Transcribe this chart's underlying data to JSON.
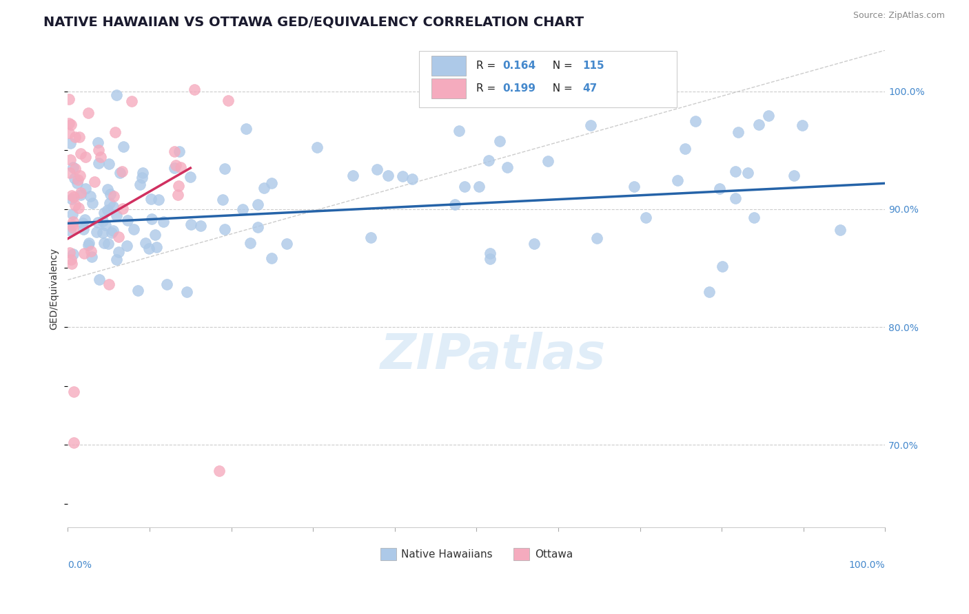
{
  "title": "NATIVE HAWAIIAN VS OTTAWA GED/EQUIVALENCY CORRELATION CHART",
  "source_text": "Source: ZipAtlas.com",
  "ylabel": "GED/Equivalency",
  "xlim": [
    0.0,
    100.0
  ],
  "ylim": [
    63.0,
    103.5
  ],
  "ytick_positions": [
    70.0,
    80.0,
    90.0,
    100.0
  ],
  "blue_R": 0.164,
  "blue_N": 115,
  "pink_R": 0.199,
  "pink_N": 47,
  "blue_dot_color": "#adc9e8",
  "pink_dot_color": "#f5abbe",
  "blue_line_color": "#2563a8",
  "pink_line_color": "#d03060",
  "ref_line_color": "#cccccc",
  "grid_color": "#cccccc",
  "right_tick_color": "#4488cc",
  "xlabel_color": "#4488cc",
  "legend_label_blue": "Native Hawaiians",
  "legend_label_pink": "Ottawa",
  "watermark": "ZIPatlas",
  "blue_trend_x0": 0.0,
  "blue_trend_y0": 88.8,
  "blue_trend_x1": 100.0,
  "blue_trend_y1": 92.2,
  "pink_trend_x0": 0.0,
  "pink_trend_y0": 87.5,
  "pink_trend_x1": 15.0,
  "pink_trend_y1": 93.5,
  "ref_x0": 0.0,
  "ref_y0": 84.0,
  "ref_x1": 100.0,
  "ref_y1": 103.5,
  "title_fontsize": 14,
  "source_fontsize": 9,
  "axis_label_fontsize": 10,
  "tick_fontsize": 10,
  "legend_fontsize": 11,
  "watermark_fontsize": 52
}
